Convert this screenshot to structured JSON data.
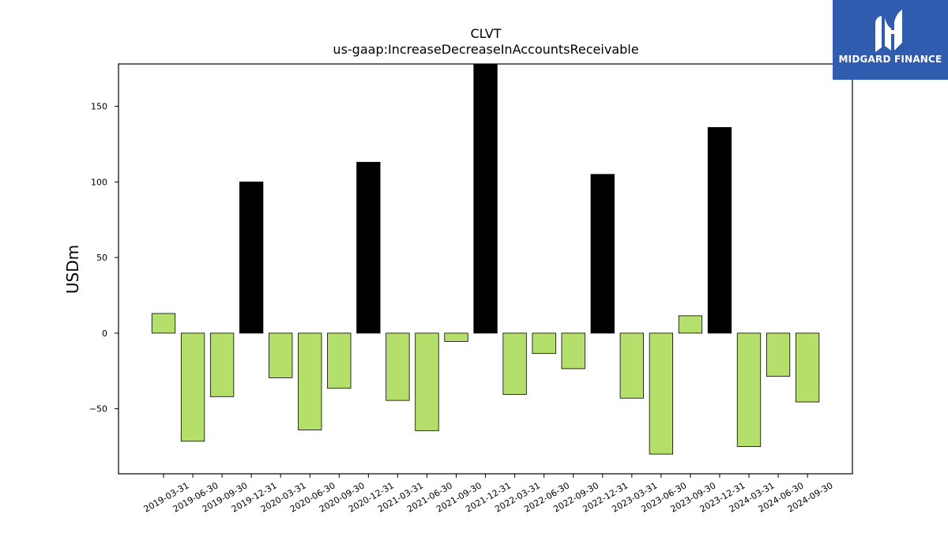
{
  "chart_data": {
    "type": "bar",
    "title": "CLVT",
    "subtitle": "us-gaap:IncreaseDecreaseInAccountsReceivable",
    "xlabel": "",
    "ylabel": "USDm",
    "ylim": [
      -93,
      178
    ],
    "yticks": [
      -50,
      0,
      50,
      100,
      150
    ],
    "categories": [
      "2019-03-31",
      "2019-06-30",
      "2019-09-30",
      "2019-12-31",
      "2020-03-31",
      "2020-06-30",
      "2020-09-30",
      "2020-12-31",
      "2021-03-31",
      "2021-06-30",
      "2021-09-30",
      "2021-12-31",
      "2022-03-31",
      "2022-06-30",
      "2022-09-30",
      "2022-12-31",
      "2023-03-31",
      "2023-06-30",
      "2023-09-30",
      "2023-12-31",
      "2024-03-31",
      "2024-06-30",
      "2024-09-30"
    ],
    "values": [
      13,
      -71.5,
      -42,
      100,
      -29.5,
      -64,
      -36.5,
      113,
      -44.5,
      -64.5,
      -5.5,
      182,
      -40.5,
      -13.5,
      -23.5,
      105,
      -43,
      -80,
      11.5,
      136,
      -75,
      -28.5,
      -45.5
    ],
    "colors": {
      "q4": "#000000",
      "other": "#b5df6b",
      "edge": "#000000"
    },
    "grid": false
  },
  "logo": {
    "text": "MIDGARD FINANCE",
    "bg": "#2f5cae"
  }
}
